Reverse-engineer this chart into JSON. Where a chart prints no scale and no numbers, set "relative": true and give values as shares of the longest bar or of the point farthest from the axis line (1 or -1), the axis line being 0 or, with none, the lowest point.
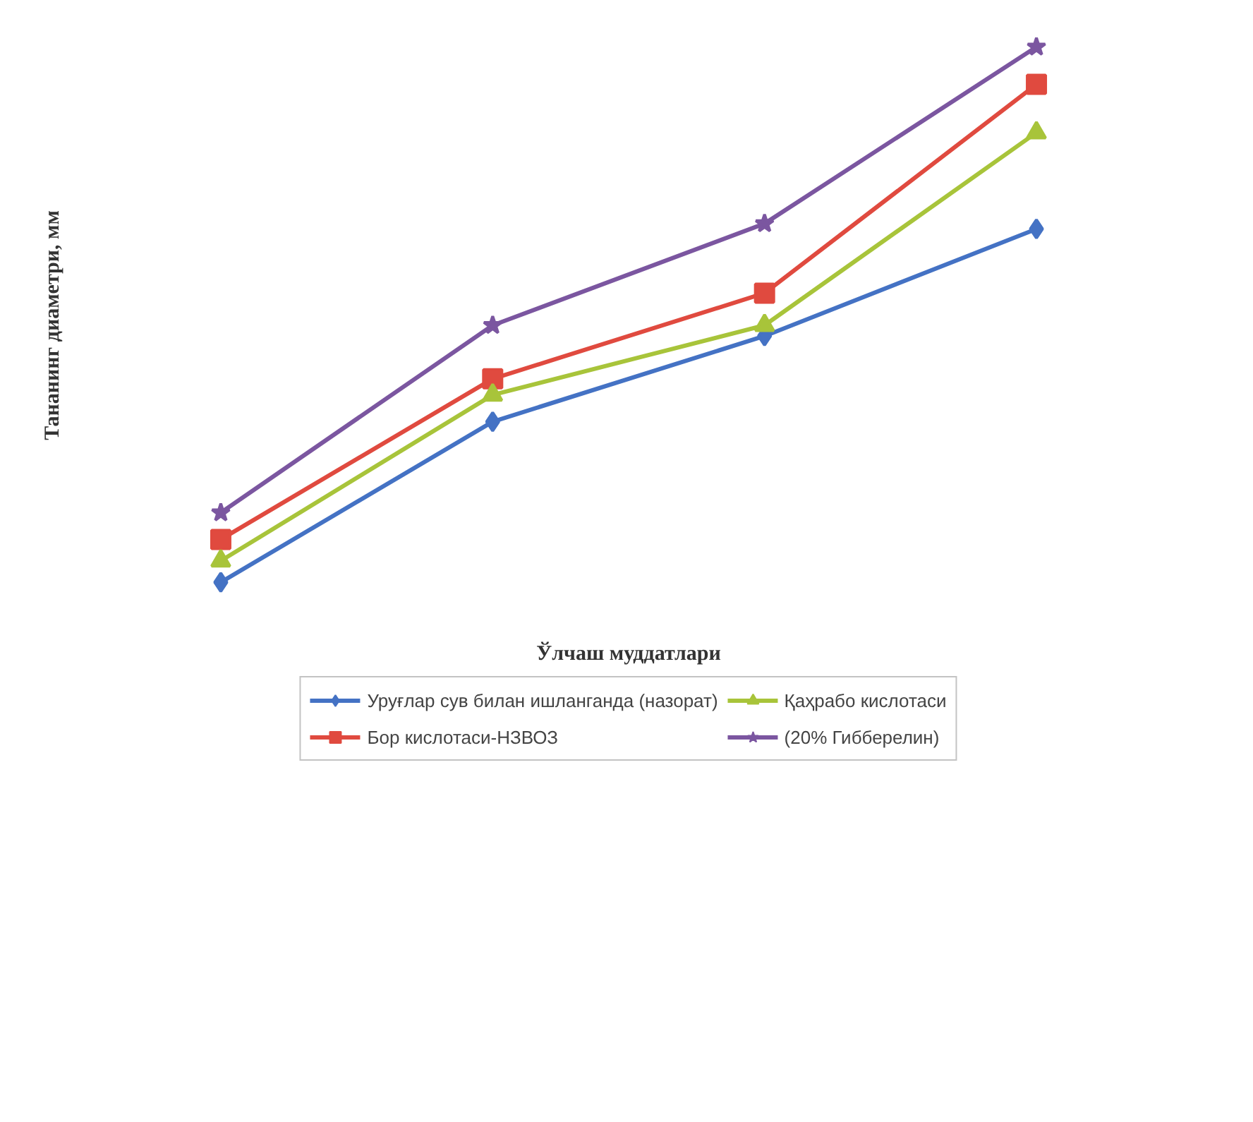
{
  "chart_data": {
    "type": "line",
    "relative": true,
    "xlabel": "Ўлчаш муддатлари",
    "ylabel": "Тананинг диаметри, мм",
    "categories": [
      null,
      null,
      null,
      null
    ],
    "legend": "bottom",
    "series": [
      {
        "name": "Уруғлар сув билан ишланганда (назорат)",
        "color": "#4472c4",
        "marker": "diamond",
        "values": [
          0,
          0.3,
          0.46,
          0.66
        ]
      },
      {
        "name": "Бор кислотаси-НЗВОЗ",
        "color": "#e04a3f",
        "marker": "square",
        "values": [
          0.08,
          0.38,
          0.54,
          0.93
        ]
      },
      {
        "name": "Қаҳрабо кислотаси",
        "color": "#a8c43a",
        "marker": "triangle",
        "values": [
          0.04,
          0.35,
          0.48,
          0.84
        ]
      },
      {
        "name": "(20% Гибберелин)",
        "color": "#7b56a0",
        "marker": "star",
        "values": [
          0.13,
          0.48,
          0.67,
          1.0
        ]
      }
    ]
  }
}
